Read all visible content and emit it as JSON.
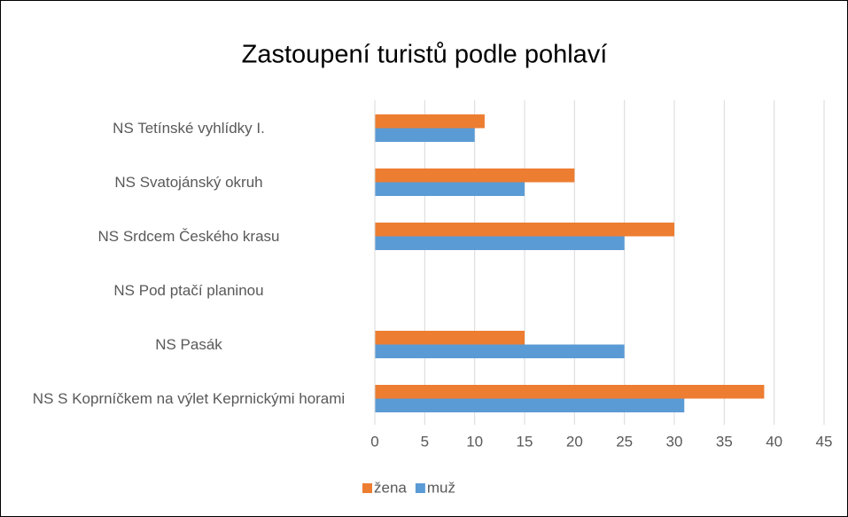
{
  "chart_data": {
    "type": "bar",
    "orientation": "horizontal",
    "title": "Zastoupení turistů podle pohlaví",
    "categories": [
      "NS Tetínské vyhlídky I.",
      "NS Svatojánský okruh",
      "NS Srdcem Českého krasu",
      "NS Pod ptačí planinou",
      "NS Pasák",
      "NS S Koprníčkem na výlet Keprnickými horami"
    ],
    "series": [
      {
        "name": "žena",
        "color": "#ed7d31",
        "values": [
          11,
          20,
          30,
          0,
          15,
          39
        ]
      },
      {
        "name": "muž",
        "color": "#5b9bd5",
        "values": [
          10,
          15,
          25,
          0,
          25,
          31
        ]
      }
    ],
    "xlim": [
      0,
      45
    ],
    "xticks": [
      0,
      5,
      10,
      15,
      20,
      25,
      30,
      35,
      40,
      45
    ],
    "grid": true,
    "legend": "bottom"
  }
}
